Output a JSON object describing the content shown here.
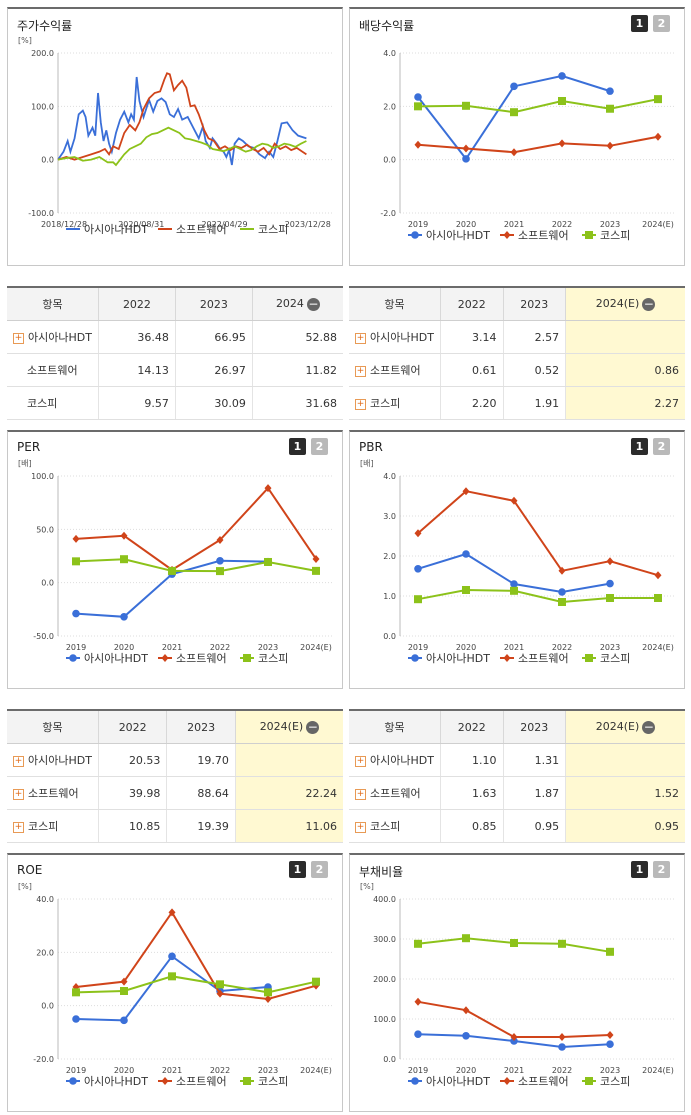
{
  "colors": {
    "s1": "#3a6fd8",
    "s2": "#d0441a",
    "s3": "#8cc21a"
  },
  "series_names": [
    "아시아나HDT",
    "소프트웨어",
    "코스피"
  ],
  "panels": {
    "p1": {
      "title": "주가수익률"
    },
    "p2": {
      "title": "배당수익률",
      "btn1": "1",
      "btn2": "2"
    },
    "p3": {
      "title": "PER",
      "btn1": "1",
      "btn2": "2"
    },
    "p4": {
      "title": "PBR",
      "btn1": "1",
      "btn2": "2"
    },
    "p5": {
      "title": "ROE",
      "btn1": "1",
      "btn2": "2"
    },
    "p6": {
      "title": "부채비율",
      "btn1": "1",
      "btn2": "2"
    }
  },
  "tables": {
    "t1": {
      "header": [
        "항목",
        "2022",
        "2023",
        "2024"
      ],
      "rows": [
        {
          "name": "아시아나HDT",
          "plus": true,
          "v": [
            "36.48",
            "66.95",
            "52.88"
          ]
        },
        {
          "name": "소프트웨어",
          "plus": false,
          "v": [
            "14.13",
            "26.97",
            "11.82"
          ]
        },
        {
          "name": "코스피",
          "plus": false,
          "v": [
            "9.57",
            "30.09",
            "31.68"
          ]
        }
      ],
      "hl": false
    },
    "t2": {
      "header": [
        "항목",
        "2022",
        "2023",
        "2024(E)"
      ],
      "rows": [
        {
          "name": "아시아나HDT",
          "plus": true,
          "v": [
            "3.14",
            "2.57",
            ""
          ]
        },
        {
          "name": "소프트웨어",
          "plus": true,
          "v": [
            "0.61",
            "0.52",
            "0.86"
          ]
        },
        {
          "name": "코스피",
          "plus": true,
          "v": [
            "2.20",
            "1.91",
            "2.27"
          ]
        }
      ],
      "hl": true
    },
    "t3": {
      "header": [
        "항목",
        "2022",
        "2023",
        "2024(E)"
      ],
      "rows": [
        {
          "name": "아시아나HDT",
          "plus": true,
          "v": [
            "20.53",
            "19.70",
            ""
          ]
        },
        {
          "name": "소프트웨어",
          "plus": true,
          "v": [
            "39.98",
            "88.64",
            "22.24"
          ]
        },
        {
          "name": "코스피",
          "plus": true,
          "v": [
            "10.85",
            "19.39",
            "11.06"
          ]
        }
      ],
      "hl": true
    },
    "t4": {
      "header": [
        "항목",
        "2022",
        "2023",
        "2024(E)"
      ],
      "rows": [
        {
          "name": "아시아나HDT",
          "plus": true,
          "v": [
            "1.10",
            "1.31",
            ""
          ]
        },
        {
          "name": "소프트웨어",
          "plus": true,
          "v": [
            "1.63",
            "1.87",
            "1.52"
          ]
        },
        {
          "name": "코스피",
          "plus": true,
          "v": [
            "0.85",
            "0.95",
            "0.95"
          ]
        }
      ],
      "hl": true
    }
  },
  "chart_data": [
    {
      "id": "c1",
      "type": "line",
      "unit": "[%]",
      "ylim": [
        -100,
        200
      ],
      "yticks": [
        "-100.0",
        "0.0",
        "100.0",
        "200.0"
      ],
      "xticks": [
        "2018/12/28",
        "2020/08/31",
        "2022/04/29",
        "2023/12/28"
      ],
      "x_range": [
        0,
        1
      ],
      "series": [
        {
          "name": "아시아나HDT",
          "points": [
            [
              0,
              0
            ],
            [
              0.02,
              15
            ],
            [
              0.035,
              35
            ],
            [
              0.045,
              15
            ],
            [
              0.06,
              40
            ],
            [
              0.075,
              85
            ],
            [
              0.09,
              92
            ],
            [
              0.1,
              80
            ],
            [
              0.11,
              45
            ],
            [
              0.125,
              60
            ],
            [
              0.135,
              45
            ],
            [
              0.145,
              125
            ],
            [
              0.155,
              70
            ],
            [
              0.165,
              35
            ],
            [
              0.175,
              55
            ],
            [
              0.185,
              30
            ],
            [
              0.195,
              15
            ],
            [
              0.21,
              50
            ],
            [
              0.225,
              75
            ],
            [
              0.24,
              90
            ],
            [
              0.255,
              70
            ],
            [
              0.265,
              85
            ],
            [
              0.275,
              75
            ],
            [
              0.285,
              155
            ],
            [
              0.295,
              110
            ],
            [
              0.31,
              80
            ],
            [
              0.33,
              112
            ],
            [
              0.345,
              90
            ],
            [
              0.36,
              110
            ],
            [
              0.375,
              115
            ],
            [
              0.39,
              108
            ],
            [
              0.405,
              85
            ],
            [
              0.42,
              80
            ],
            [
              0.435,
              95
            ],
            [
              0.45,
              75
            ],
            [
              0.47,
              80
            ],
            [
              0.49,
              60
            ],
            [
              0.51,
              40
            ],
            [
              0.525,
              62
            ],
            [
              0.535,
              35
            ],
            [
              0.55,
              22
            ],
            [
              0.56,
              40
            ],
            [
              0.575,
              30
            ],
            [
              0.59,
              18
            ],
            [
              0.6,
              15
            ],
            [
              0.61,
              5
            ],
            [
              0.62,
              18
            ],
            [
              0.63,
              -10
            ],
            [
              0.64,
              30
            ],
            [
              0.655,
              40
            ],
            [
              0.67,
              35
            ],
            [
              0.69,
              25
            ],
            [
              0.71,
              22
            ],
            [
              0.73,
              10
            ],
            [
              0.75,
              3
            ],
            [
              0.765,
              15
            ],
            [
              0.78,
              5
            ],
            [
              0.795,
              35
            ],
            [
              0.81,
              68
            ],
            [
              0.83,
              70
            ],
            [
              0.85,
              55
            ],
            [
              0.87,
              45
            ],
            [
              0.9,
              40
            ]
          ]
        },
        {
          "name": "소프트웨어",
          "points": [
            [
              0,
              0
            ],
            [
              0.03,
              5
            ],
            [
              0.06,
              0
            ],
            [
              0.09,
              5
            ],
            [
              0.12,
              10
            ],
            [
              0.15,
              15
            ],
            [
              0.17,
              20
            ],
            [
              0.185,
              10
            ],
            [
              0.2,
              25
            ],
            [
              0.22,
              20
            ],
            [
              0.24,
              50
            ],
            [
              0.26,
              65
            ],
            [
              0.28,
              55
            ],
            [
              0.295,
              70
            ],
            [
              0.31,
              95
            ],
            [
              0.33,
              115
            ],
            [
              0.35,
              125
            ],
            [
              0.37,
              128
            ],
            [
              0.385,
              150
            ],
            [
              0.395,
              162
            ],
            [
              0.405,
              160
            ],
            [
              0.42,
              130
            ],
            [
              0.435,
              140
            ],
            [
              0.45,
              148
            ],
            [
              0.465,
              135
            ],
            [
              0.48,
              100
            ],
            [
              0.495,
              102
            ],
            [
              0.51,
              85
            ],
            [
              0.52,
              70
            ],
            [
              0.53,
              55
            ],
            [
              0.545,
              40
            ],
            [
              0.565,
              35
            ],
            [
              0.585,
              20
            ],
            [
              0.605,
              25
            ],
            [
              0.625,
              18
            ],
            [
              0.645,
              25
            ],
            [
              0.665,
              22
            ],
            [
              0.685,
              28
            ],
            [
              0.705,
              20
            ],
            [
              0.725,
              15
            ],
            [
              0.745,
              22
            ],
            [
              0.765,
              10
            ],
            [
              0.785,
              30
            ],
            [
              0.805,
              20
            ],
            [
              0.825,
              25
            ],
            [
              0.845,
              18
            ],
            [
              0.865,
              22
            ],
            [
              0.885,
              15
            ],
            [
              0.9,
              10
            ]
          ]
        },
        {
          "name": "코스피",
          "points": [
            [
              0,
              0
            ],
            [
              0.03,
              3
            ],
            [
              0.06,
              5
            ],
            [
              0.09,
              -2
            ],
            [
              0.12,
              0
            ],
            [
              0.15,
              5
            ],
            [
              0.18,
              -5
            ],
            [
              0.2,
              -5
            ],
            [
              0.21,
              -10
            ],
            [
              0.225,
              0
            ],
            [
              0.24,
              10
            ],
            [
              0.26,
              20
            ],
            [
              0.28,
              25
            ],
            [
              0.3,
              30
            ],
            [
              0.32,
              42
            ],
            [
              0.34,
              48
            ],
            [
              0.36,
              50
            ],
            [
              0.38,
              55
            ],
            [
              0.4,
              60
            ],
            [
              0.42,
              55
            ],
            [
              0.44,
              50
            ],
            [
              0.46,
              40
            ],
            [
              0.48,
              38
            ],
            [
              0.5,
              35
            ],
            [
              0.52,
              32
            ],
            [
              0.54,
              28
            ],
            [
              0.56,
              20
            ],
            [
              0.58,
              18
            ],
            [
              0.6,
              16
            ],
            [
              0.62,
              20
            ],
            [
              0.64,
              25
            ],
            [
              0.66,
              20
            ],
            [
              0.68,
              15
            ],
            [
              0.7,
              18
            ],
            [
              0.72,
              25
            ],
            [
              0.74,
              30
            ],
            [
              0.76,
              28
            ],
            [
              0.78,
              22
            ],
            [
              0.8,
              25
            ],
            [
              0.82,
              30
            ],
            [
              0.84,
              28
            ],
            [
              0.86,
              24
            ],
            [
              0.88,
              30
            ],
            [
              0.9,
              35
            ]
          ]
        }
      ]
    },
    {
      "id": "c2",
      "type": "line",
      "unit": "",
      "ylim": [
        -2,
        4
      ],
      "yticks": [
        "-2.0",
        "0.0",
        "2.0",
        "4.0"
      ],
      "categories": [
        "2019",
        "2020",
        "2021",
        "2022",
        "2023",
        "2024(E)"
      ],
      "series": [
        {
          "name": "아시아나HDT",
          "values": [
            2.35,
            0.03,
            2.75,
            3.14,
            2.57,
            null
          ]
        },
        {
          "name": "소프트웨어",
          "values": [
            0.56,
            0.42,
            0.28,
            0.61,
            0.52,
            0.86
          ]
        },
        {
          "name": "코스피",
          "values": [
            2.0,
            2.02,
            1.78,
            2.2,
            1.91,
            2.27
          ]
        }
      ]
    },
    {
      "id": "c3",
      "type": "line",
      "unit": "[배]",
      "ylim": [
        -50,
        100
      ],
      "yticks": [
        "-50.0",
        "0.0",
        "50.0",
        "100.0"
      ],
      "categories": [
        "2019",
        "2020",
        "2021",
        "2022",
        "2023",
        "2024(E)"
      ],
      "series": [
        {
          "name": "아시아나HDT",
          "values": [
            -29,
            -32,
            8,
            20.53,
            19.7,
            null
          ]
        },
        {
          "name": "소프트웨어",
          "values": [
            41,
            44,
            12,
            39.98,
            88.64,
            22.24
          ]
        },
        {
          "name": "코스피",
          "values": [
            20,
            22,
            11,
            10.85,
            19.39,
            11.06
          ]
        }
      ]
    },
    {
      "id": "c4",
      "type": "line",
      "unit": "[배]",
      "ylim": [
        0,
        4
      ],
      "yticks": [
        "0.0",
        "1.0",
        "2.0",
        "3.0",
        "4.0"
      ],
      "categories": [
        "2019",
        "2020",
        "2021",
        "2022",
        "2023",
        "2024(E)"
      ],
      "series": [
        {
          "name": "아시아나HDT",
          "values": [
            1.68,
            2.05,
            1.3,
            1.1,
            1.31,
            null
          ]
        },
        {
          "name": "소프트웨어",
          "values": [
            2.57,
            3.62,
            3.38,
            1.63,
            1.87,
            1.52
          ]
        },
        {
          "name": "코스피",
          "values": [
            0.92,
            1.15,
            1.13,
            0.85,
            0.95,
            0.95
          ]
        }
      ]
    },
    {
      "id": "c5",
      "type": "line",
      "unit": "[%]",
      "ylim": [
        -20,
        40
      ],
      "yticks": [
        "-20.0",
        "0.0",
        "20.0",
        "40.0"
      ],
      "categories": [
        "2019",
        "2020",
        "2021",
        "2022",
        "2023",
        "2024(E)"
      ],
      "series": [
        {
          "name": "아시아나HDT",
          "values": [
            -5,
            -5.5,
            18.5,
            5.5,
            7,
            null
          ]
        },
        {
          "name": "소프트웨어",
          "values": [
            7,
            9,
            35,
            4.5,
            2.5,
            7.5
          ]
        },
        {
          "name": "코스피",
          "values": [
            5,
            5.5,
            11,
            8,
            5,
            9
          ]
        }
      ]
    },
    {
      "id": "c6",
      "type": "line",
      "unit": "[%]",
      "ylim": [
        0,
        400
      ],
      "yticks": [
        "0.0",
        "100.0",
        "200.0",
        "300.0",
        "400.0"
      ],
      "categories": [
        "2019",
        "2020",
        "2021",
        "2022",
        "2023",
        "2024(E)"
      ],
      "series": [
        {
          "name": "아시아나HDT",
          "values": [
            62,
            58,
            45,
            30,
            37,
            null
          ]
        },
        {
          "name": "소프트웨어",
          "values": [
            143,
            122,
            55,
            55,
            60,
            null
          ]
        },
        {
          "name": "코스피",
          "values": [
            288,
            302,
            290,
            288,
            268,
            null
          ]
        }
      ]
    }
  ]
}
